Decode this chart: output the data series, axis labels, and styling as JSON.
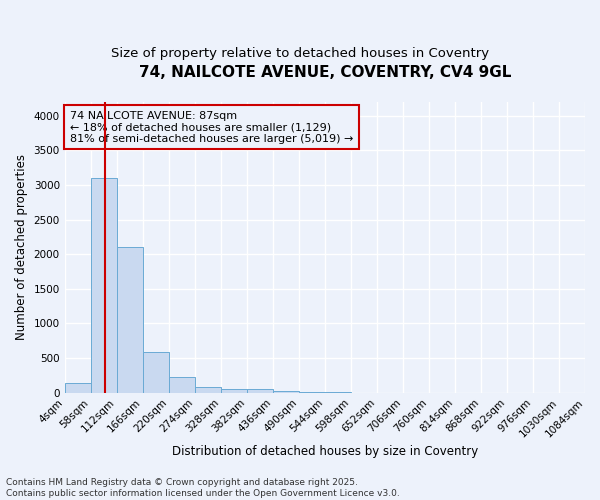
{
  "title1": "74, NAILCOTE AVENUE, COVENTRY, CV4 9GL",
  "title2": "Size of property relative to detached houses in Coventry",
  "xlabel": "Distribution of detached houses by size in Coventry",
  "ylabel": "Number of detached properties",
  "bin_edges": [
    4,
    58,
    112,
    166,
    220,
    274,
    328,
    382,
    436,
    490,
    544,
    598,
    652,
    706,
    760,
    814,
    868,
    922,
    976,
    1030,
    1084
  ],
  "bar_heights": [
    140,
    3100,
    2100,
    580,
    220,
    75,
    55,
    50,
    20,
    5,
    2,
    1,
    1,
    0,
    0,
    0,
    0,
    0,
    0,
    0
  ],
  "bar_color": "#c9d9f0",
  "bar_edge_color": "#6aaad4",
  "property_size": 87,
  "vline_color": "#cc0000",
  "annotation_line1": "74 NAILCOTE AVENUE: 87sqm",
  "annotation_line2": "← 18% of detached houses are smaller (1,129)",
  "annotation_line3": "81% of semi-detached houses are larger (5,019) →",
  "annotation_box_color": "#cc0000",
  "ylim": [
    0,
    4200
  ],
  "yticks": [
    0,
    500,
    1000,
    1500,
    2000,
    2500,
    3000,
    3500,
    4000
  ],
  "footer_text": "Contains HM Land Registry data © Crown copyright and database right 2025.\nContains public sector information licensed under the Open Government Licence v3.0.",
  "bg_color": "#edf2fb",
  "grid_color": "#ffffff",
  "title_fontsize": 11,
  "subtitle_fontsize": 9.5,
  "annotation_fontsize": 8,
  "axis_label_fontsize": 8.5,
  "tick_fontsize": 7.5,
  "footer_fontsize": 6.5
}
